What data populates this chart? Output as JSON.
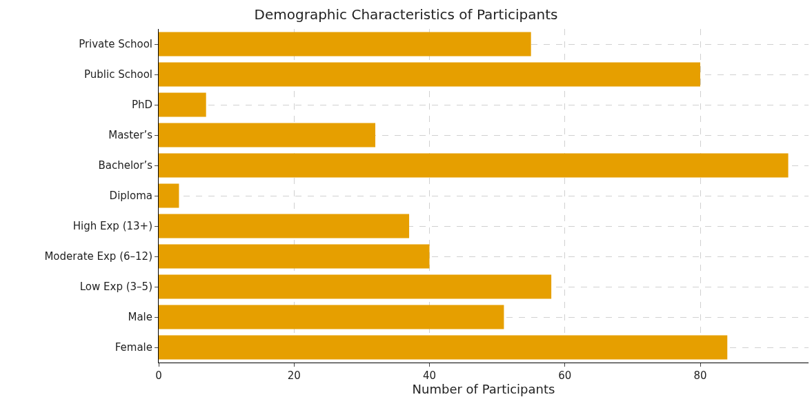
{
  "chart_data": {
    "type": "bar",
    "orientation": "horizontal",
    "title": "Demographic Characteristics of Participants",
    "xlabel": "Number of Participants",
    "categories": [
      "Private School",
      "Public School",
      "PhD",
      "Master’s",
      "Bachelor’s",
      "Diploma",
      "High Exp (13+)",
      "Moderate Exp (6–12)",
      "Low Exp (3–5)",
      "Male",
      "Female"
    ],
    "values": [
      55,
      80,
      7,
      32,
      93,
      3,
      37,
      40,
      58,
      51,
      84
    ],
    "color": "#e69f00",
    "xlim": [
      0,
      96
    ],
    "xticks": [
      0,
      20,
      40,
      60,
      80
    ],
    "grid": true
  }
}
